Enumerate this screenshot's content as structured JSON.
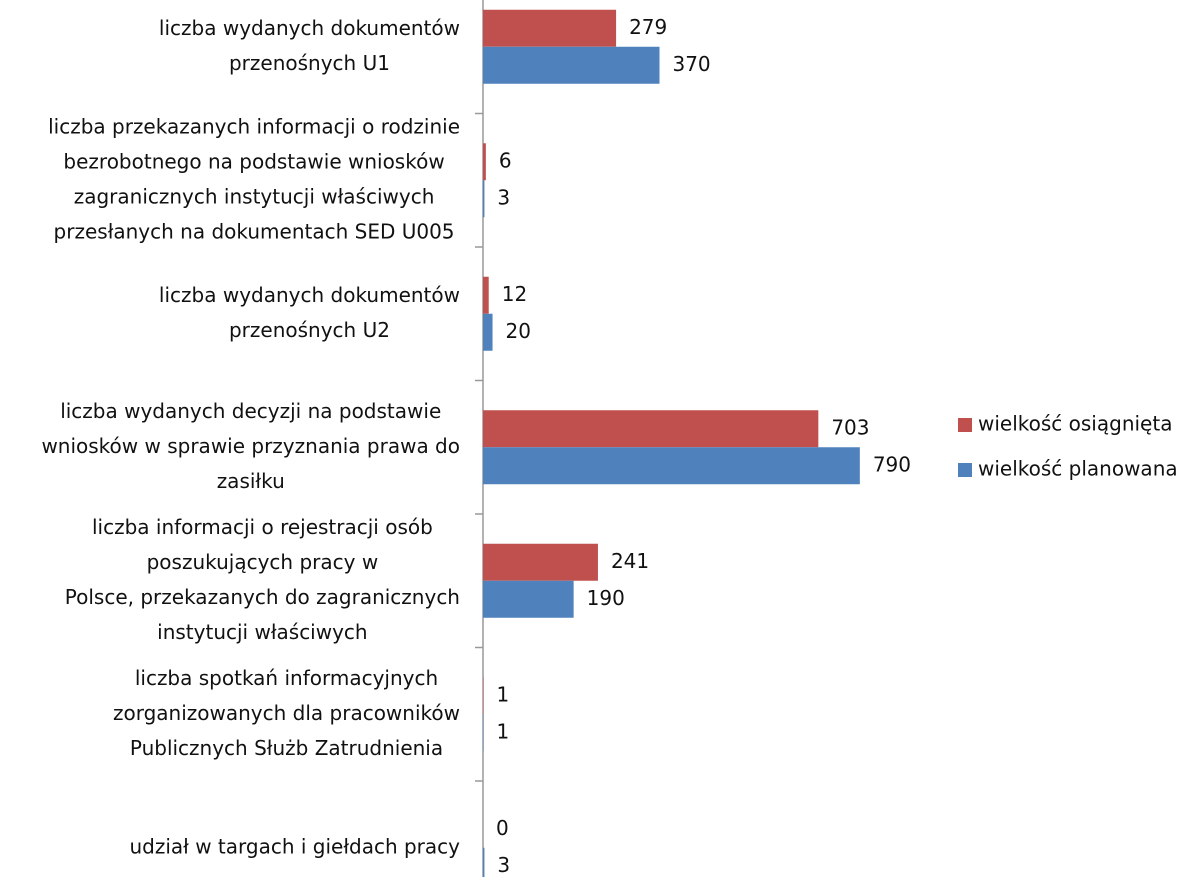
{
  "chart_data": {
    "type": "bar",
    "orientation": "horizontal",
    "categories": [
      [
        "liczba wydanych dokumentów",
        "przenośnych U1"
      ],
      [
        "liczba przekazanych informacji o rodzinie",
        "bezrobotnego na podstawie wniosków",
        "zagranicznych instytucji właściwych",
        "przesłanych na dokumentach SED U005"
      ],
      [
        "liczba wydanych dokumentów",
        "przenośnych U2"
      ],
      [
        "liczba wydanych decyzji na podstawie",
        "wniosków w sprawie przyznania prawa do",
        "zasiłku"
      ],
      [
        "liczba informacji o rejestracji osób",
        "poszukujących pracy w",
        "Polsce, przekazanych do zagranicznych",
        "instytucji właściwych"
      ],
      [
        "liczba spotkań informacyjnych",
        "zorganizowanych dla pracowników",
        "Publicznych Służb Zatrudnienia"
      ],
      [
        "udział w targach i giełdach pracy"
      ]
    ],
    "series": [
      {
        "name": "wielkość osiągnięta",
        "color": "#c0504d",
        "values": [
          279,
          6,
          12,
          703,
          241,
          1,
          0
        ]
      },
      {
        "name": "wielkość planowana",
        "color": "#4f81bd",
        "values": [
          370,
          3,
          20,
          790,
          190,
          1,
          3
        ]
      }
    ],
    "legend": "right"
  }
}
